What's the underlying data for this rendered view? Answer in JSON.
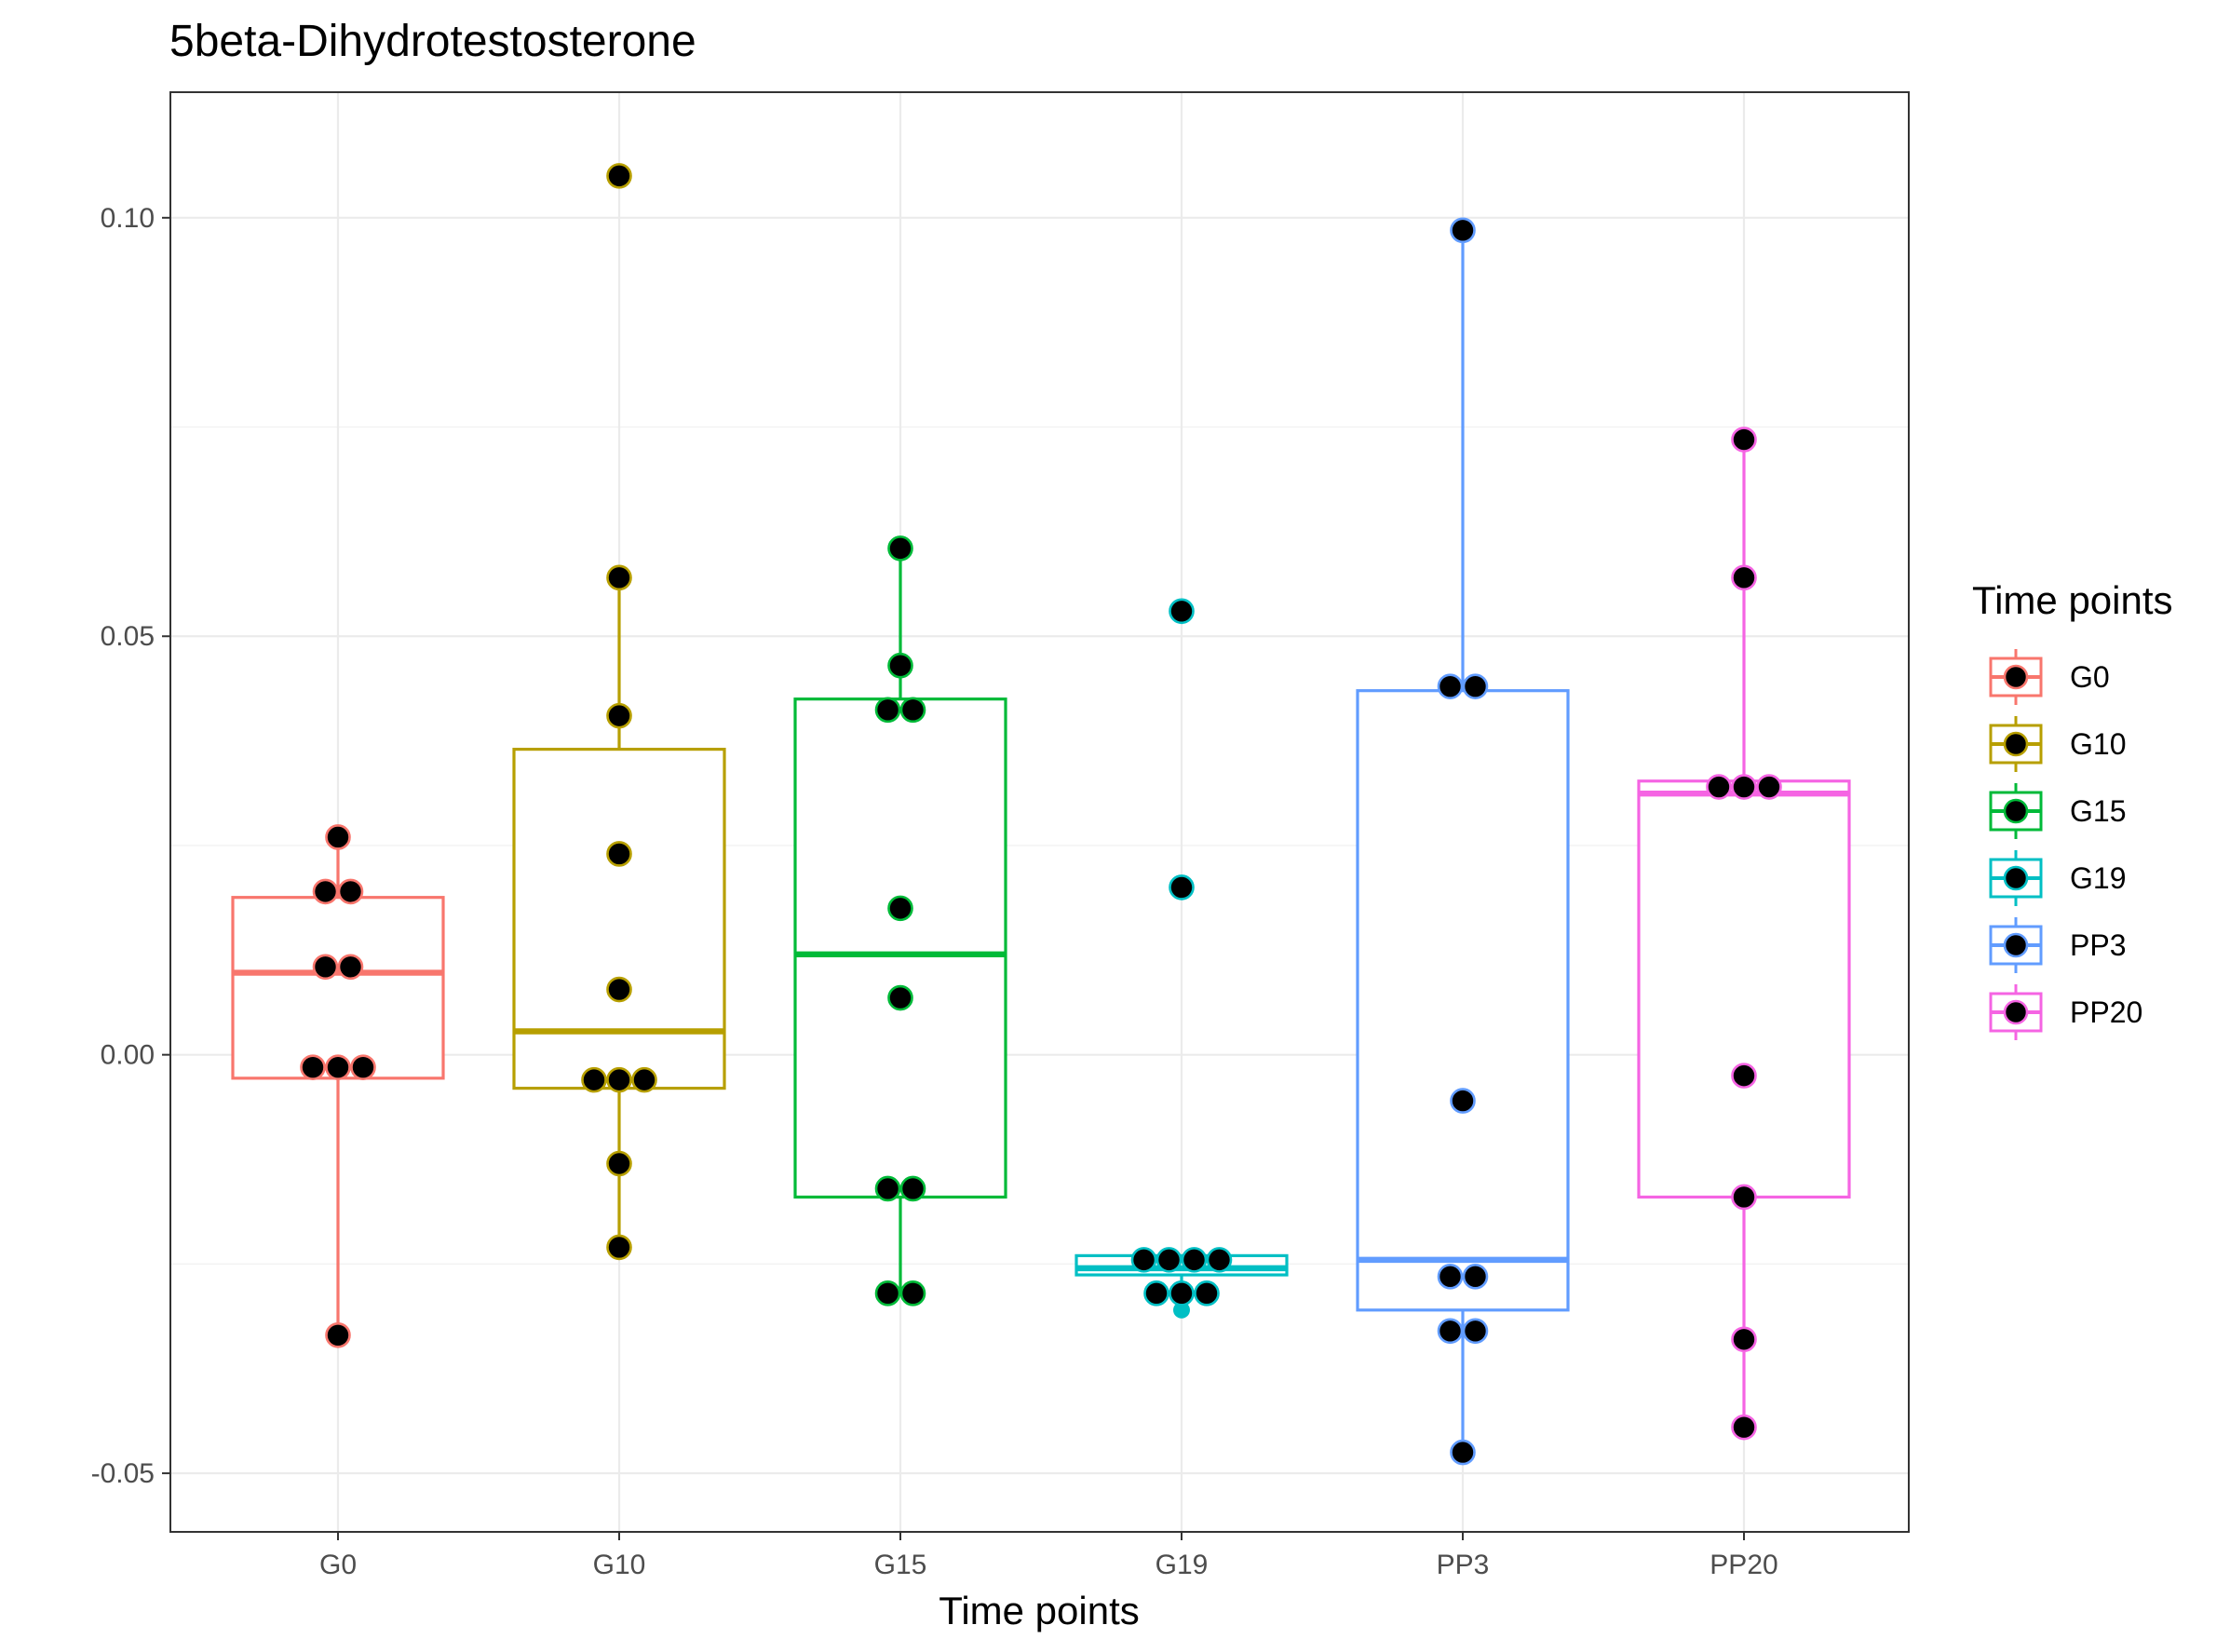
{
  "chart_data": {
    "type": "boxplot",
    "title": "5beta-Dihydrotestosterone",
    "xlabel": "Time points",
    "ylabel": "",
    "ylim": [
      -0.057,
      0.115
    ],
    "yticks": [
      -0.05,
      0.0,
      0.05,
      0.1
    ],
    "ytick_labels": [
      "-0.05",
      "0.00",
      "0.05",
      "0.10"
    ],
    "grid": true,
    "legend": {
      "title": "Time points",
      "position": "right",
      "entries": [
        "G0",
        "G10",
        "G15",
        "G19",
        "PP3",
        "PP20"
      ]
    },
    "categories": [
      "G0",
      "G10",
      "G15",
      "G19",
      "PP3",
      "PP20"
    ],
    "colors": {
      "G0": "#F8766D",
      "G10": "#B79F00",
      "G15": "#00BA38",
      "G19": "#00BFC4",
      "PP3": "#619CFF",
      "PP20": "#F564E3"
    },
    "point_fill": "#000000",
    "boxes": [
      {
        "group": "G0",
        "whisker_low": -0.0335,
        "q1": -0.0028,
        "median": 0.0098,
        "q3": 0.0188,
        "whisker_high": 0.026,
        "outliers": []
      },
      {
        "group": "G10",
        "whisker_low": -0.023,
        "q1": -0.004,
        "median": 0.0028,
        "q3": 0.0365,
        "whisker_high": 0.057,
        "outliers": [
          0.105
        ]
      },
      {
        "group": "G15",
        "whisker_low": -0.0285,
        "q1": -0.017,
        "median": 0.012,
        "q3": 0.0425,
        "whisker_high": 0.0605,
        "outliers": []
      },
      {
        "group": "G19",
        "whisker_low": -0.027,
        "q1": -0.0263,
        "median": -0.0255,
        "q3": -0.024,
        "whisker_high": -0.024,
        "outliers": [
          0.053,
          0.02,
          -0.0285,
          -0.0285,
          -0.0285,
          -0.0305
        ]
      },
      {
        "group": "PP3",
        "whisker_low": -0.0475,
        "q1": -0.0305,
        "median": -0.0245,
        "q3": 0.0435,
        "whisker_high": 0.0985,
        "outliers": []
      },
      {
        "group": "PP20",
        "whisker_low": -0.0445,
        "q1": -0.017,
        "median": 0.0312,
        "q3": 0.0327,
        "whisker_high": 0.0735,
        "outliers": []
      }
    ],
    "points": [
      {
        "group": "G0",
        "values": [
          0.026,
          0.0195,
          0.0195,
          0.0105,
          0.0105,
          -0.0015,
          -0.0015,
          -0.0015,
          -0.0335
        ]
      },
      {
        "group": "G10",
        "values": [
          0.105,
          0.057,
          0.0405,
          0.024,
          0.0078,
          -0.003,
          -0.003,
          -0.003,
          -0.013,
          -0.023
        ]
      },
      {
        "group": "G15",
        "values": [
          0.0605,
          0.0465,
          0.0412,
          0.0412,
          0.0175,
          0.0068,
          -0.016,
          -0.016,
          -0.0285,
          -0.0285
        ]
      },
      {
        "group": "G19",
        "values": [
          0.053,
          0.02,
          -0.0245,
          -0.0245,
          -0.0245,
          -0.0245,
          -0.0285,
          -0.0285,
          -0.0285
        ]
      },
      {
        "group": "PP3",
        "values": [
          0.0985,
          0.044,
          0.044,
          -0.0055,
          -0.0265,
          -0.0265,
          -0.033,
          -0.033,
          -0.0475
        ]
      },
      {
        "group": "PP20",
        "values": [
          0.0735,
          0.057,
          0.032,
          0.032,
          0.032,
          -0.0025,
          -0.017,
          -0.034,
          -0.0445
        ]
      }
    ]
  }
}
